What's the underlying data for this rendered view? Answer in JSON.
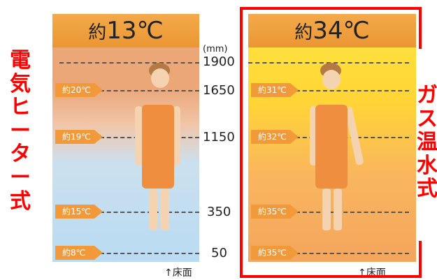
{
  "left_panel": {
    "header_prefix": "約",
    "header_value": "13℃",
    "labels": [
      "約20℃",
      "約19℃",
      "約15℃",
      "約8℃"
    ],
    "floor_label": "↑床面"
  },
  "right_panel": {
    "header_prefix": "約",
    "header_value": "34℃",
    "labels": [
      "約31℃",
      "約32℃",
      "約35℃",
      "約35℃"
    ],
    "floor_label": "↑床面"
  },
  "heights": {
    "unit": "(mm)",
    "values": [
      "1900",
      "1650",
      "1150",
      "350",
      "50"
    ]
  },
  "side_labels": {
    "left": "電\n気\nヒ\nー\nタ\nー\n式",
    "right": "ガ\nス\n温\n水\n式"
  },
  "colors": {
    "highlight": "#ff0000",
    "tag": "#f29a3a"
  }
}
